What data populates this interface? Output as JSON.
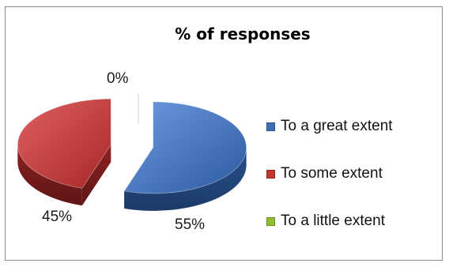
{
  "chart_data": {
    "type": "pie",
    "title": "% of responses",
    "categories": [
      "To a great extent",
      "To some extent",
      "To a little extent"
    ],
    "values": [
      55,
      45,
      0
    ],
    "data_labels": [
      "55%",
      "45%",
      "0%"
    ],
    "colors": [
      "#3d6fb7",
      "#c0392b",
      "#8fbf2f"
    ],
    "legend_position": "right",
    "exploded": true,
    "three_d": true
  }
}
